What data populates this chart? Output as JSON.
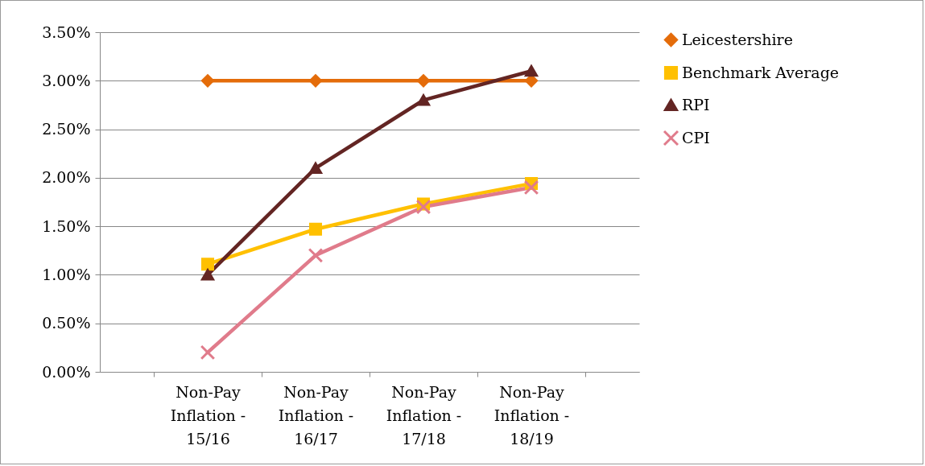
{
  "chart_data": {
    "type": "line",
    "categories": [
      "Non-Pay Inflation - 15/16",
      "Non-Pay Inflation - 16/17",
      "Non-Pay Inflation - 17/18",
      "Non-Pay Inflation - 18/19"
    ],
    "series": [
      {
        "name": "Leicestershire",
        "color": "#e46c0a",
        "marker": "diamond",
        "values": [
          3.0,
          3.0,
          3.0,
          3.0
        ]
      },
      {
        "name": "Benchmark Average",
        "color": "#ffc000",
        "marker": "square",
        "values": [
          1.11,
          1.47,
          1.73,
          1.94
        ]
      },
      {
        "name": "RPI",
        "color": "#632523",
        "marker": "triangle",
        "values": [
          1.0,
          2.1,
          2.8,
          3.1
        ]
      },
      {
        "name": "CPI",
        "color": "#e07b8b",
        "marker": "cross",
        "values": [
          0.2,
          1.2,
          1.7,
          1.9
        ]
      }
    ],
    "ylim": [
      0,
      3.5
    ],
    "yticks": [
      {
        "value": 0,
        "label": "0.00%"
      },
      {
        "value": 0.5,
        "label": "0.50%"
      },
      {
        "value": 1,
        "label": "1.00%"
      },
      {
        "value": 1.5,
        "label": "1.50%"
      },
      {
        "value": 2,
        "label": "2.00%"
      },
      {
        "value": 2.5,
        "label": "2.50%"
      },
      {
        "value": 3,
        "label": "3.00%"
      },
      {
        "value": 3.5,
        "label": "3.50%"
      }
    ],
    "grid": "y",
    "legend": "right",
    "line_style": "solid"
  }
}
